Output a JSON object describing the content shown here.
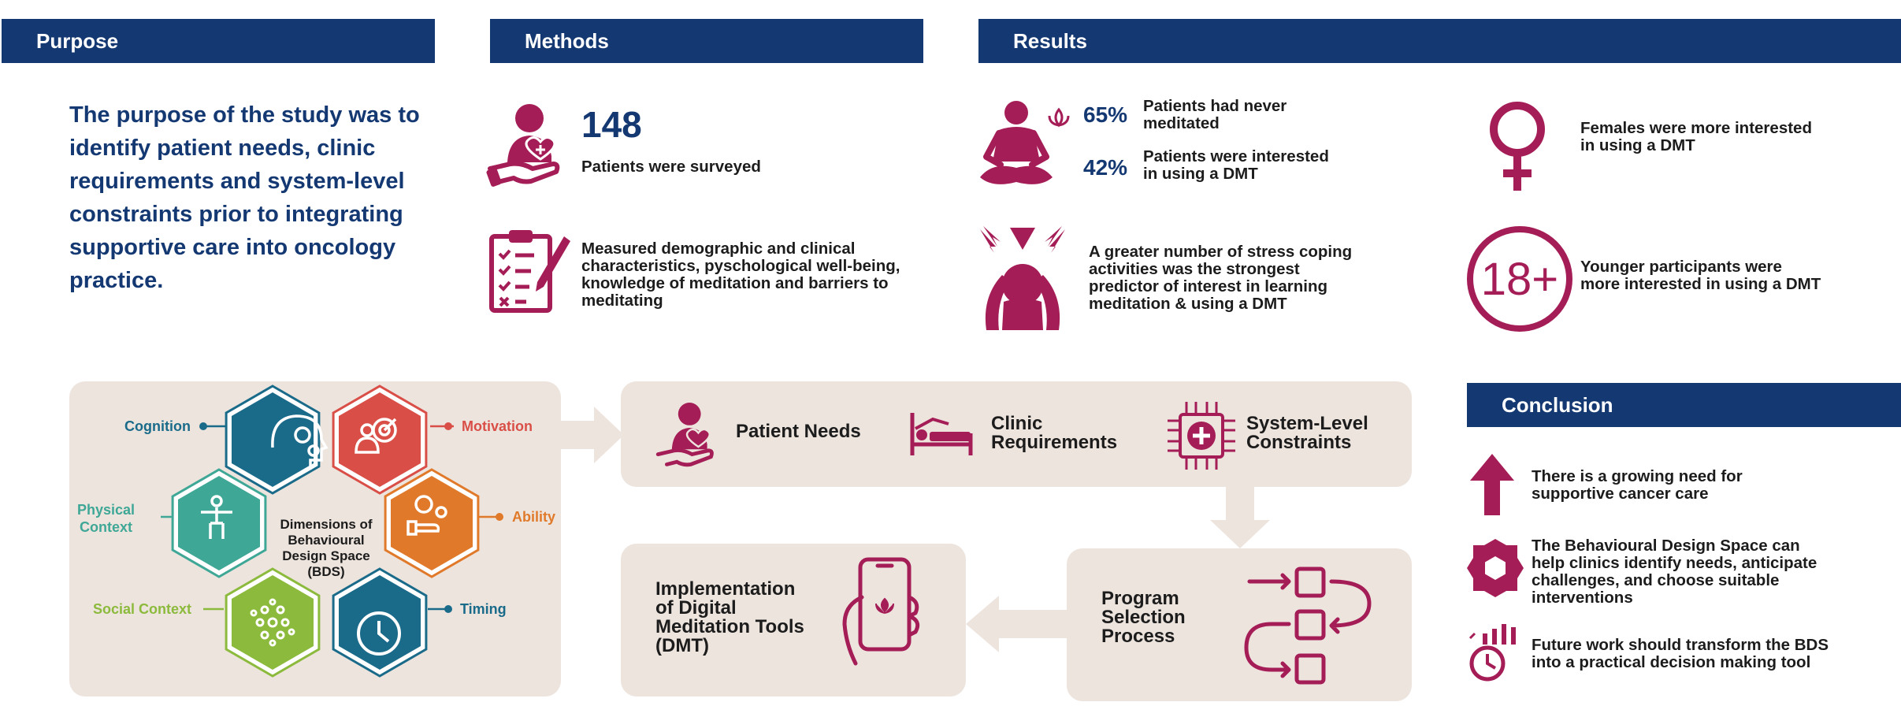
{
  "headers": {
    "purpose": "Purpose",
    "methods": "Methods",
    "results": "Results",
    "conclusion": "Conclusion"
  },
  "purpose": {
    "lines": [
      "The purpose of the study was to",
      "identify patient needs, clinic",
      "requirements and system-level",
      "constraints prior to integrating",
      "supportive care into oncology",
      "practice."
    ]
  },
  "methods": {
    "count": "148",
    "surveyed": "Patients were surveyed",
    "measured_lines": [
      "Measured demographic and clinical",
      "characteristics, pyschological well-being,",
      "knowledge of meditation and barriers to",
      "meditating"
    ]
  },
  "results": {
    "stat1_pct": "65%",
    "stat1_lines": [
      "Patients had never",
      "meditated"
    ],
    "stat2_pct": "42%",
    "stat2_lines": [
      "Patients were interested",
      "in using a DMT"
    ],
    "stress_lines": [
      "A greater number of stress coping",
      "activities was the strongest",
      "predictor of interest in learning",
      "meditation & using a DMT"
    ],
    "female_lines": [
      "Females were more interested",
      "in using a DMT"
    ],
    "age_badge": "18+",
    "younger_lines": [
      "Younger participants were",
      "more interested in using a DMT"
    ]
  },
  "bds": {
    "center_lines": [
      "Dimensions of",
      "Behavioural",
      "Design Space",
      "(BDS)"
    ],
    "labels": {
      "cognition": "Cognition",
      "motivation": "Motivation",
      "physical_lines": [
        "Physical",
        "Context"
      ],
      "ability": "Ability",
      "social": "Social Context",
      "timing": "Timing"
    },
    "colors": {
      "cognition": "#1a6b8a",
      "motivation": "#d94f47",
      "physical": "#3fa796",
      "ability": "#e07a2a",
      "social": "#8cba3c",
      "timing": "#1a6b8a"
    }
  },
  "flow": {
    "patient_needs": "Patient Needs",
    "clinic_lines": [
      "Clinic",
      "Requirements"
    ],
    "system_lines": [
      "System-Level",
      "Constraints"
    ],
    "program_lines": [
      "Program",
      "Selection",
      "Process"
    ],
    "impl_lines": [
      "Implementation",
      "of Digital",
      "Meditation Tools",
      "(DMT)"
    ]
  },
  "conclusion": {
    "item1_lines": [
      "There is a growing need for",
      "supportive cancer care"
    ],
    "item2_lines": [
      "The Behavioural Design Space can",
      "help clinics identify needs, anticipate",
      "challenges, and choose suitable",
      "interventions"
    ],
    "item3_lines": [
      "Future work should transform the BDS",
      "into a practical decision making tool"
    ]
  },
  "palette": {
    "navy": "#143872",
    "magenta": "#a51d56",
    "panel": "#ede4de"
  }
}
